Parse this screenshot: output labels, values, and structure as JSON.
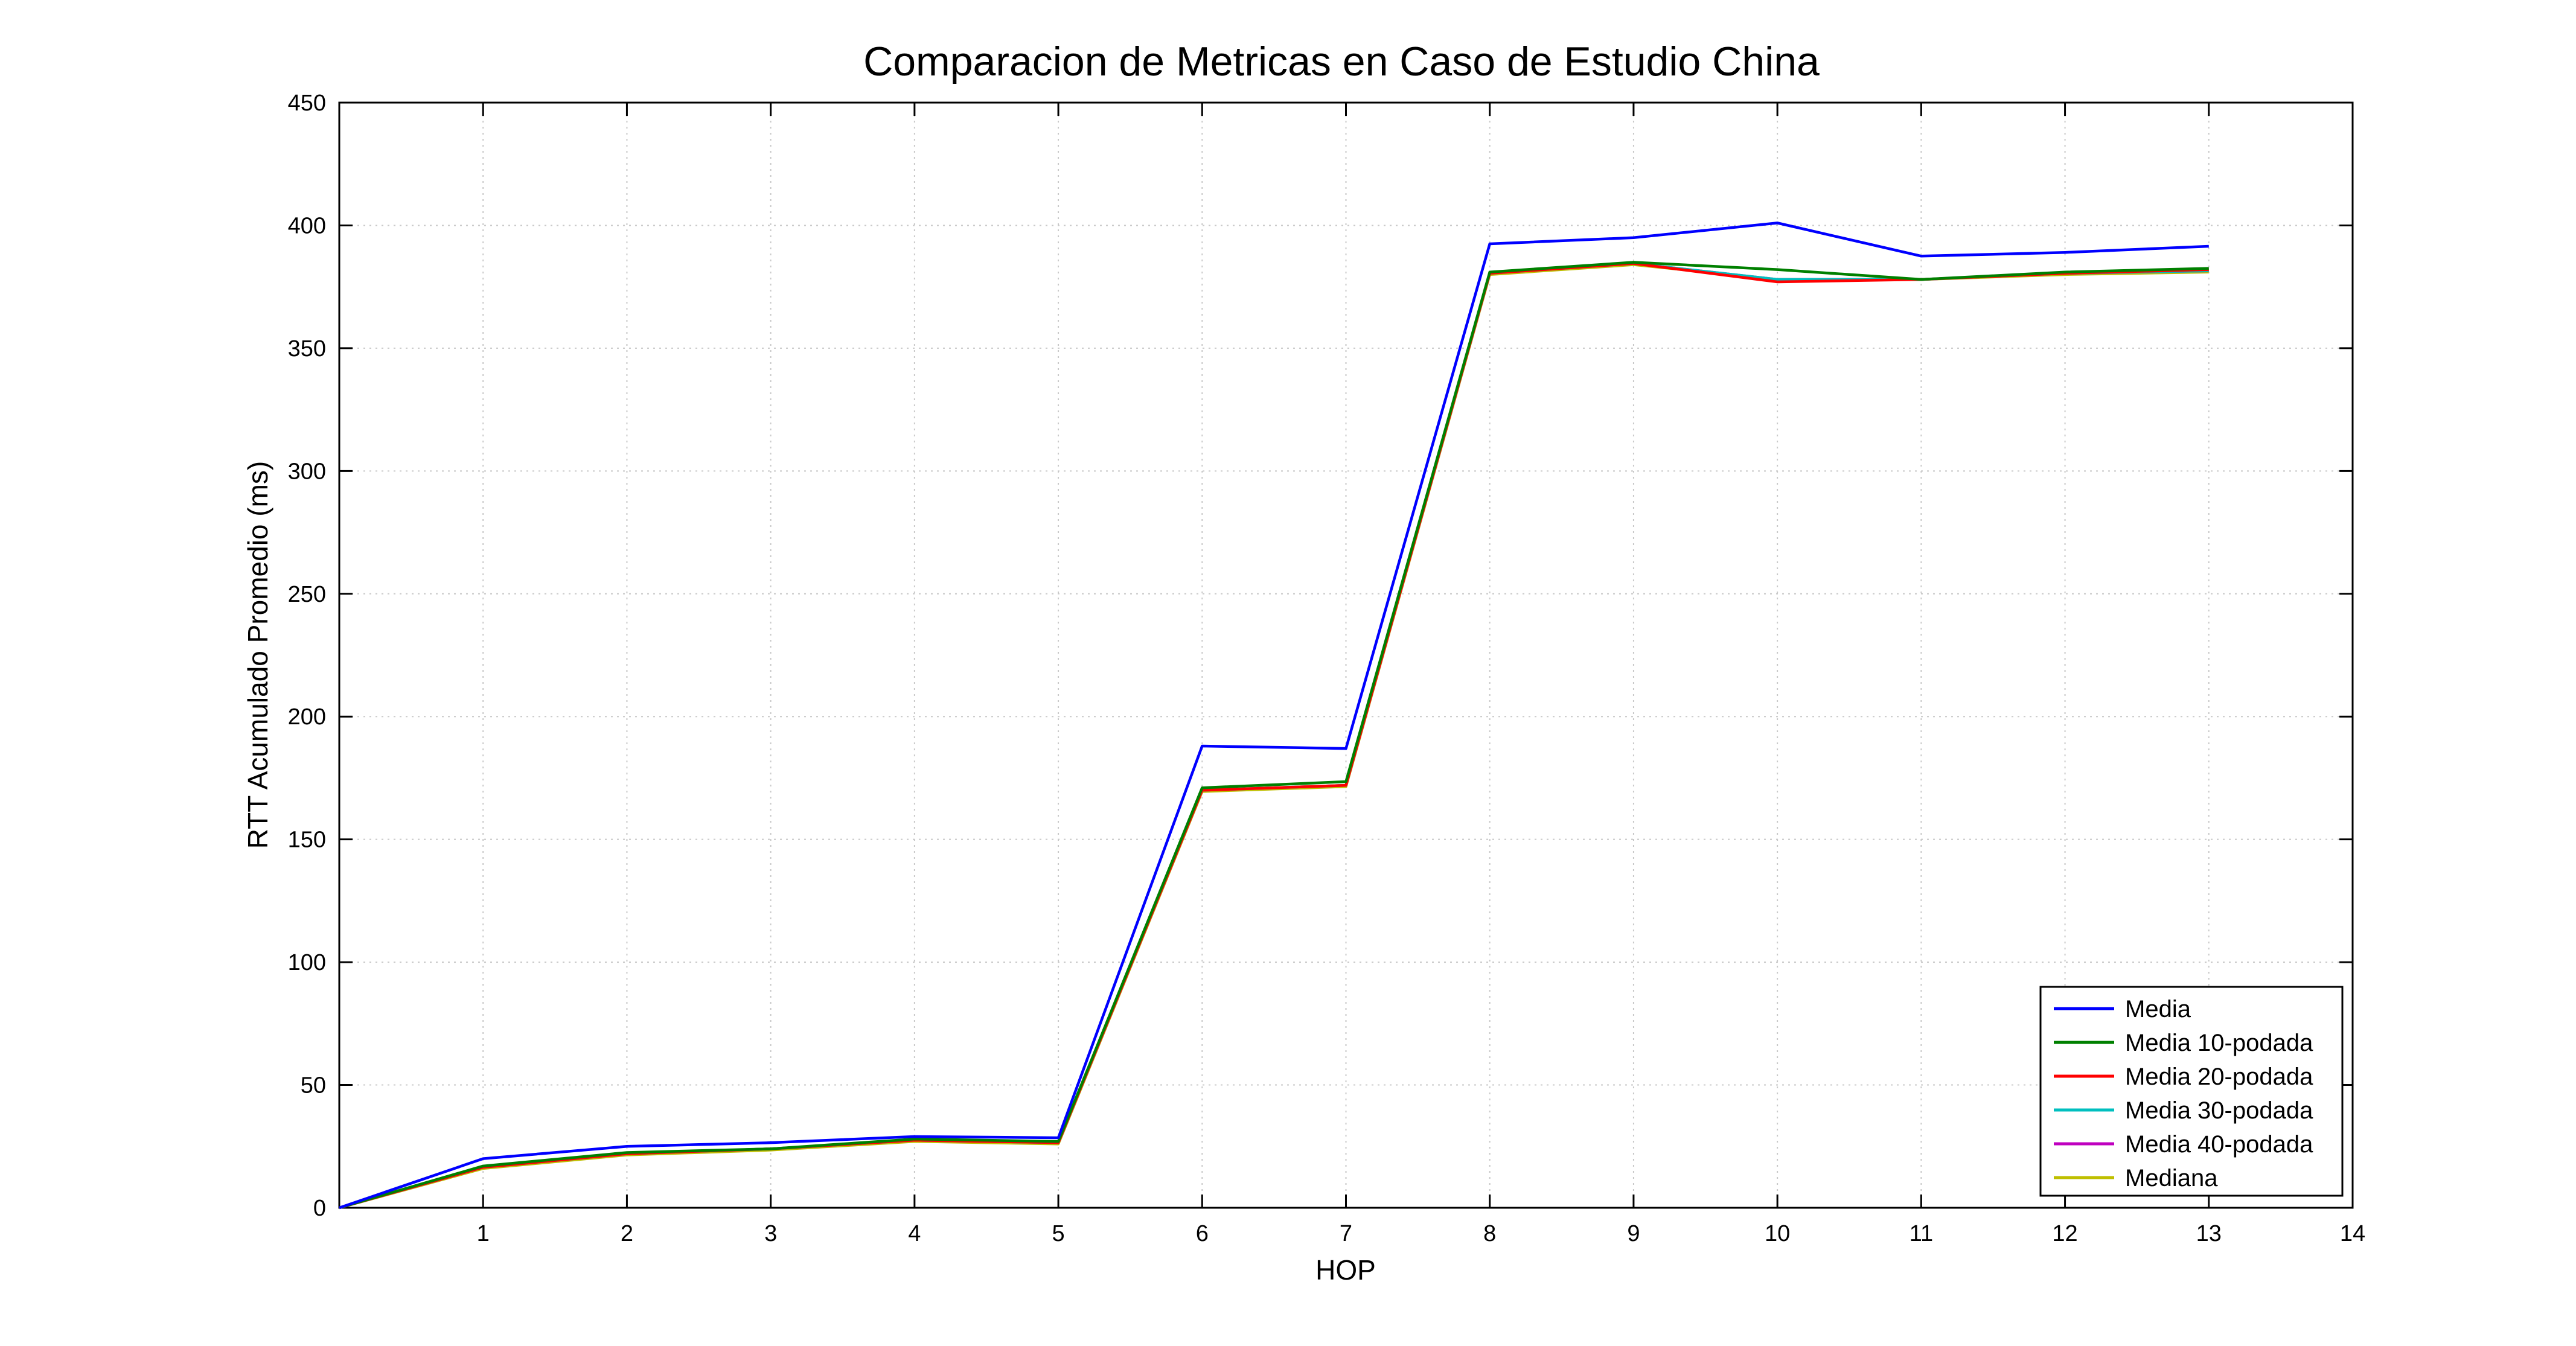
{
  "chart_data": {
    "type": "line",
    "title": "Comparacion de Metricas en Caso de Estudio China",
    "xlabel": "HOP",
    "ylabel": "RTT Acumulado Promedio (ms)",
    "xlim": [
      0,
      14
    ],
    "ylim": [
      0,
      450
    ],
    "xticks": [
      1,
      2,
      3,
      4,
      5,
      6,
      7,
      8,
      9,
      10,
      11,
      12,
      13,
      14
    ],
    "yticks": [
      0,
      50,
      100,
      150,
      200,
      250,
      300,
      350,
      400,
      450
    ],
    "grid": true,
    "legend_position": "bottom-right",
    "x": [
      0,
      1,
      2,
      3,
      4,
      5,
      6,
      7,
      8,
      9,
      10,
      11,
      12,
      13
    ],
    "series": [
      {
        "name": "Media",
        "color": "#0000ff",
        "values": [
          0,
          20,
          25,
          26.5,
          29,
          28.5,
          188,
          187,
          392.5,
          395,
          401,
          387.5,
          389,
          391.5
        ]
      },
      {
        "name": "Media 10-podada",
        "color": "#008000",
        "values": [
          0,
          17,
          22.5,
          24,
          28,
          27,
          171,
          173.5,
          381,
          385,
          382,
          378,
          381,
          382.5
        ]
      },
      {
        "name": "Media 20-podada",
        "color": "#ff0000",
        "values": [
          0,
          16.5,
          22,
          24,
          27.5,
          26.5,
          170,
          172,
          380.5,
          384.5,
          377,
          378,
          380.5,
          382
        ]
      },
      {
        "name": "Media 30-podada",
        "color": "#00bfbf",
        "values": [
          0,
          16.5,
          22,
          24,
          27.5,
          26.5,
          170,
          172,
          380.5,
          384.5,
          378,
          378,
          380.5,
          381.5
        ]
      },
      {
        "name": "Media 40-podada",
        "color": "#bf00bf",
        "values": [
          0,
          16.5,
          22,
          24,
          27.5,
          26.5,
          170,
          172,
          380.5,
          384.5,
          378,
          378,
          380.5,
          381.5
        ]
      },
      {
        "name": "Mediana",
        "color": "#bfbf00",
        "values": [
          0,
          16,
          21.5,
          23.5,
          27,
          26,
          169.5,
          171.5,
          380,
          384,
          378,
          378,
          380,
          381
        ]
      }
    ]
  }
}
